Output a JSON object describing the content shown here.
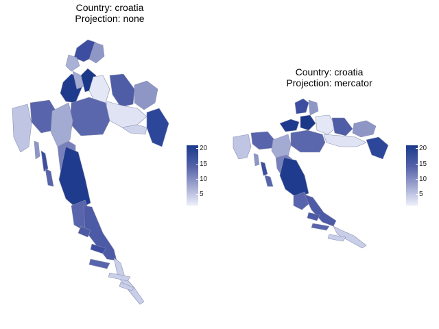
{
  "panels": [
    {
      "title_line1": "Country: croatia",
      "title_line2": "Projection: none"
    },
    {
      "title_line1": "Country: croatia",
      "title_line2": "Projection: mercator"
    }
  ],
  "legend": {
    "ticks": [
      "20",
      "15",
      "10",
      "5"
    ],
    "color_high": "#1b3a8c",
    "color_low": "#eef0fb",
    "stroke": "#8a8fb0"
  }
}
